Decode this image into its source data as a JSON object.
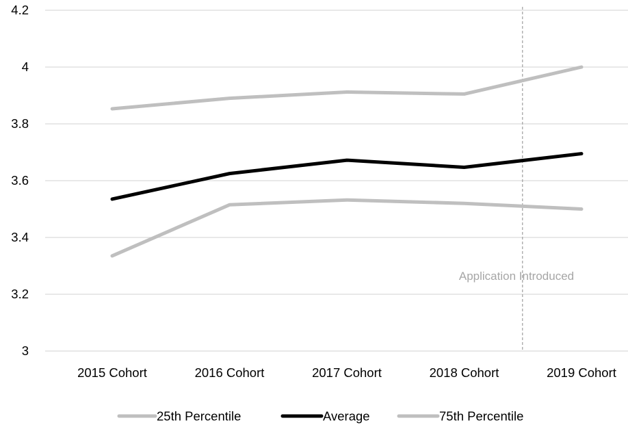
{
  "chart_data": {
    "type": "line",
    "categories": [
      "2015 Cohort",
      "2016 Cohort",
      "2017 Cohort",
      "2018 Cohort",
      "2019 Cohort"
    ],
    "series": [
      {
        "name": "25th Percentile",
        "values": [
          3.335,
          3.515,
          3.532,
          3.52,
          3.5
        ],
        "color": "#bfbfbf"
      },
      {
        "name": "Average",
        "values": [
          3.535,
          3.625,
          3.672,
          3.647,
          3.695
        ],
        "color": "#000000"
      },
      {
        "name": "75th Percentile",
        "values": [
          3.853,
          3.89,
          3.912,
          3.905,
          4.0
        ],
        "color": "#bfbfbf"
      }
    ],
    "yticks": [
      "3",
      "3.2",
      "3.4",
      "3.6",
      "3.8",
      "4",
      "4.2"
    ],
    "ylim": [
      3,
      4.2
    ],
    "grid": true,
    "legend_position": "bottom",
    "annotation": {
      "text": "Application Introduced",
      "between_categories": [
        "2018 Cohort",
        "2019 Cohort"
      ],
      "style": "dashed-vertical-line",
      "color": "#a6a6a6"
    },
    "colors": {
      "grid": "#d9d9d9",
      "text": "#000000"
    }
  }
}
